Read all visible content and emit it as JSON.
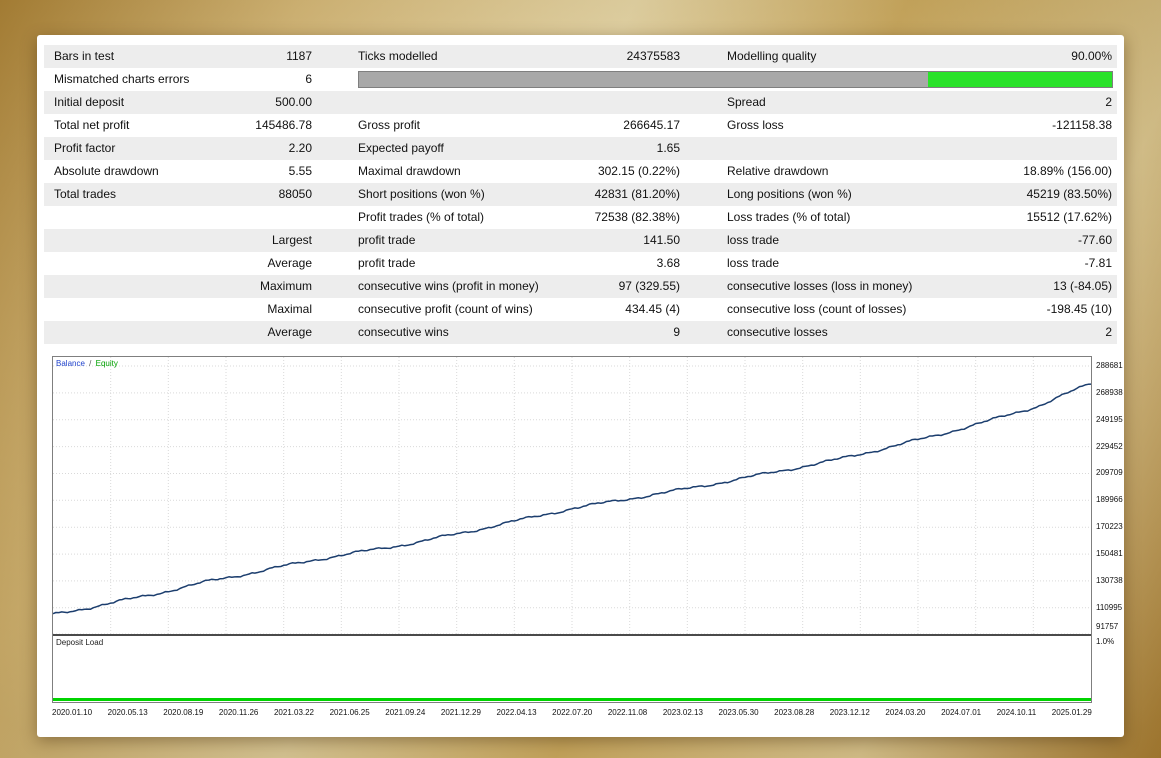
{
  "report": {
    "rows": [
      {
        "c1l": "Bars in test",
        "c1v": "1187",
        "c2l": "Ticks modelled",
        "c2v": "24375583",
        "c3l": "Modelling quality",
        "c3v": "90.00%"
      },
      {
        "c1l": "Mismatched charts errors",
        "c1v": "6",
        "bar": true
      },
      {
        "c1l": "Initial deposit",
        "c1v": "500.00",
        "c2l": "",
        "c2v": "",
        "c3l": "Spread",
        "c3v": "2"
      },
      {
        "c1l": "Total net profit",
        "c1v": "145486.78",
        "c2l": "Gross profit",
        "c2v": "266645.17",
        "c3l": "Gross loss",
        "c3v": "-121158.38"
      },
      {
        "c1l": "Profit factor",
        "c1v": "2.20",
        "c2l": "Expected payoff",
        "c2v": "1.65",
        "c3l": "",
        "c3v": ""
      },
      {
        "c1l": "Absolute drawdown",
        "c1v": "5.55",
        "c2l": "Maximal drawdown",
        "c2v": "302.15 (0.22%)",
        "c3l": "Relative drawdown",
        "c3v": "18.89% (156.00)"
      },
      {
        "c1l": "Total trades",
        "c1v": "88050",
        "c2l": "Short positions (won %)",
        "c2v": "42831 (81.20%)",
        "c3l": "Long positions (won %)",
        "c3v": "45219 (83.50%)"
      },
      {
        "c1l": "",
        "c1v": "",
        "c2l": "Profit trades (% of total)",
        "c2v": "72538 (82.38%)",
        "c3l": "Loss trades (% of total)",
        "c3v": "15512 (17.62%)"
      },
      {
        "c1l": "",
        "c1v": "Largest",
        "c2l": "profit trade",
        "c2v": "141.50",
        "c3l": "loss trade",
        "c3v": "-77.60"
      },
      {
        "c1l": "",
        "c1v": "Average",
        "c2l": "profit trade",
        "c2v": "3.68",
        "c3l": "loss trade",
        "c3v": "-7.81"
      },
      {
        "c1l": "",
        "c1v": "Maximum",
        "c2l": "consecutive wins (profit in money)",
        "c2v": "97 (329.55)",
        "c3l": "consecutive losses (loss in money)",
        "c3v": "13 (-84.05)"
      },
      {
        "c1l": "",
        "c1v": "Maximal",
        "c2l": "consecutive profit (count of wins)",
        "c2v": "434.45 (4)",
        "c3l": "consecutive loss (count of losses)",
        "c3v": "-198.45 (10)"
      },
      {
        "c1l": "",
        "c1v": "Average",
        "c2l": "consecutive wins",
        "c2v": "9",
        "c3l": "consecutive losses",
        "c3v": "2"
      }
    ]
  },
  "modelling_bar": {
    "gray_pct": 75.5,
    "green_pct": 24.5,
    "gray_color": "#a8a8a8",
    "green_color": "#2ae22a"
  },
  "chart_data": {
    "type": "line",
    "title": "Balance / Equity",
    "legend": [
      {
        "label": "Balance",
        "color": "#2244cc"
      },
      {
        "label": "Equity",
        "color": "#00a000"
      }
    ],
    "legend_separator": "/",
    "grid": true,
    "ylim": [
      91757,
      288681
    ],
    "y_ticks": [
      288681,
      268938,
      249195,
      229452,
      209709,
      189966,
      170223,
      150481,
      130738,
      110995,
      91757
    ],
    "x_ticks": [
      "2020.01.10",
      "2020.05.13",
      "2020.08.19",
      "2020.11.26",
      "2021.03.22",
      "2021.06.25",
      "2021.09.24",
      "2021.12.29",
      "2022.04.13",
      "2022.07.20",
      "2022.11.08",
      "2023.02.13",
      "2023.05.30",
      "2023.08.28",
      "2023.12.12",
      "2024.03.20",
      "2024.07.01",
      "2024.10.11",
      "2025.01.29"
    ],
    "series": [
      {
        "name": "Balance",
        "color": "#1c3e6e",
        "anchors": [
          [
            0.0,
            106000
          ],
          [
            0.05,
            113500
          ],
          [
            0.1,
            121500
          ],
          [
            0.15,
            130500
          ],
          [
            0.2,
            138000
          ],
          [
            0.25,
            146000
          ],
          [
            0.3,
            152500
          ],
          [
            0.35,
            159000
          ],
          [
            0.4,
            167000
          ],
          [
            0.45,
            175500
          ],
          [
            0.5,
            184000
          ],
          [
            0.55,
            190500
          ],
          [
            0.6,
            197000
          ],
          [
            0.65,
            204000
          ],
          [
            0.7,
            211500
          ],
          [
            0.75,
            219000
          ],
          [
            0.8,
            228000
          ],
          [
            0.85,
            237500
          ],
          [
            0.9,
            248000
          ],
          [
            0.95,
            259500
          ],
          [
            1.0,
            276000
          ]
        ]
      }
    ],
    "deposit_load": {
      "label": "Deposit Load",
      "axis_label": "1.0%",
      "bar_color": "#00d400"
    }
  }
}
